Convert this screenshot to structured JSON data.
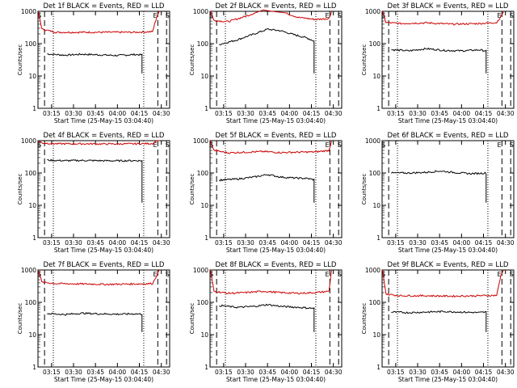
{
  "chart_data": [
    {
      "type": "line",
      "title": "Det 1f BLACK = Events, RED = LLD",
      "xlabel": "Start Time (25-May-15 03:04:40)",
      "ylabel": "Counts/sec",
      "yscale": "log",
      "ylim": [
        1,
        1000
      ],
      "yticks": [
        "1000",
        "100",
        "10",
        "1"
      ],
      "xlim": [
        3.095,
        4.595
      ],
      "xticks": [
        "03:15",
        "03:30",
        "03:45",
        "04:00",
        "04:15",
        "04:30"
      ],
      "markers": [
        "S",
        "E",
        "S"
      ],
      "series": [
        {
          "color": "#000000",
          "values": [
            [
              3.2,
              48
            ],
            [
              3.4,
              44
            ],
            [
              3.6,
              47
            ],
            [
              3.8,
              45
            ],
            [
              4.0,
              43
            ],
            [
              4.2,
              46
            ],
            [
              4.28,
              45
            ]
          ]
        },
        {
          "color": "#cc0000",
          "values": [
            [
              3.1,
              1000
            ],
            [
              3.14,
              280
            ],
            [
              3.3,
              225
            ],
            [
              3.6,
              225
            ],
            [
              3.9,
              225
            ],
            [
              4.2,
              225
            ],
            [
              4.4,
              235
            ],
            [
              4.45,
              700
            ],
            [
              4.48,
              1000
            ]
          ]
        }
      ]
    },
    {
      "type": "line",
      "title": "Det 2f BLACK = Events, RED = LLD",
      "xlabel": "Start Time (25-May-15 03:04:40)",
      "ylabel": "Counts/sec",
      "yscale": "log",
      "ylim": [
        1,
        1000
      ],
      "yticks": [
        "1000",
        "100",
        "10",
        "1"
      ],
      "xlim": [
        3.095,
        4.595
      ],
      "xticks": [
        "03:15",
        "03:30",
        "03:45",
        "04:00",
        "04:15",
        "04:30"
      ],
      "markers": [
        "S",
        "E",
        "S"
      ],
      "series": [
        {
          "color": "#000000",
          "values": [
            [
              3.2,
              95
            ],
            [
              3.4,
              130
            ],
            [
              3.6,
              200
            ],
            [
              3.75,
              280
            ],
            [
              3.9,
              250
            ],
            [
              4.05,
              190
            ],
            [
              4.2,
              150
            ],
            [
              4.28,
              120
            ]
          ]
        },
        {
          "color": "#cc0000",
          "values": [
            [
              3.1,
              1000
            ],
            [
              3.14,
              520
            ],
            [
              3.3,
              480
            ],
            [
              3.5,
              700
            ],
            [
              3.7,
              1100
            ],
            [
              3.8,
              1000
            ],
            [
              3.95,
              900
            ],
            [
              4.1,
              650
            ],
            [
              4.3,
              560
            ],
            [
              4.45,
              600
            ],
            [
              4.48,
              1000
            ]
          ]
        }
      ]
    },
    {
      "type": "line",
      "title": "Det 3f BLACK = Events, RED = LLD",
      "xlabel": "Start Time (25-May-15 03:04:40)",
      "ylabel": "Counts/sec",
      "yscale": "log",
      "ylim": [
        1,
        1000
      ],
      "yticks": [
        "1000",
        "100",
        "10",
        "1"
      ],
      "xlim": [
        3.095,
        4.595
      ],
      "xticks": [
        "03:15",
        "03:30",
        "03:45",
        "04:00",
        "04:15",
        "04:30"
      ],
      "markers": [
        "S",
        "E",
        "S"
      ],
      "series": [
        {
          "color": "#000000",
          "values": [
            [
              3.2,
              65
            ],
            [
              3.4,
              60
            ],
            [
              3.6,
              70
            ],
            [
              3.8,
              62
            ],
            [
              4.0,
              60
            ],
            [
              4.2,
              64
            ],
            [
              4.28,
              60
            ]
          ]
        },
        {
          "color": "#cc0000",
          "values": [
            [
              3.1,
              1000
            ],
            [
              3.14,
              450
            ],
            [
              3.3,
              420
            ],
            [
              3.6,
              440
            ],
            [
              3.9,
              400
            ],
            [
              4.2,
              420
            ],
            [
              4.4,
              450
            ],
            [
              4.45,
              700
            ],
            [
              4.48,
              1000
            ]
          ]
        }
      ]
    },
    {
      "type": "line",
      "title": "Det 4f BLACK = Events, RED = LLD",
      "xlabel": "Start Time (25-May-15 03:04:40)",
      "ylabel": "Counts/sec",
      "yscale": "log",
      "ylim": [
        1,
        1000
      ],
      "yticks": [
        "1000",
        "100",
        "10",
        "1"
      ],
      "xlim": [
        3.095,
        4.595
      ],
      "xticks": [
        "03:15",
        "03:30",
        "03:45",
        "04:00",
        "04:15",
        "04:30"
      ],
      "markers": [
        "S",
        "E",
        "S"
      ],
      "series": [
        {
          "color": "#000000",
          "values": [
            [
              3.2,
              250
            ],
            [
              3.4,
              240
            ],
            [
              3.6,
              245
            ],
            [
              3.8,
              240
            ],
            [
              4.0,
              238
            ],
            [
              4.2,
              242
            ],
            [
              4.28,
              240
            ]
          ]
        },
        {
          "color": "#cc0000",
          "values": [
            [
              3.1,
              1000
            ],
            [
              3.14,
              850
            ],
            [
              3.3,
              800
            ],
            [
              3.6,
              800
            ],
            [
              3.9,
              790
            ],
            [
              4.2,
              800
            ],
            [
              4.4,
              820
            ],
            [
              4.45,
              1000
            ],
            [
              4.48,
              1000
            ]
          ]
        }
      ]
    },
    {
      "type": "line",
      "title": "Det 5f BLACK = Events, RED = LLD",
      "xlabel": "Start Time (25-May-15 03:04:40)",
      "ylabel": "Counts/sec",
      "yscale": "log",
      "ylim": [
        1,
        1000
      ],
      "yticks": [
        "1000",
        "100",
        "10",
        "1"
      ],
      "xlim": [
        3.095,
        4.595
      ],
      "xticks": [
        "03:15",
        "03:30",
        "03:45",
        "04:00",
        "04:15",
        "04:30"
      ],
      "markers": [
        "S",
        "E",
        "S"
      ],
      "series": [
        {
          "color": "#000000",
          "values": [
            [
              3.2,
              60
            ],
            [
              3.4,
              65
            ],
            [
              3.6,
              75
            ],
            [
              3.75,
              90
            ],
            [
              3.9,
              75
            ],
            [
              4.05,
              70
            ],
            [
              4.2,
              68
            ],
            [
              4.28,
              62
            ]
          ]
        },
        {
          "color": "#cc0000",
          "values": [
            [
              3.1,
              1000
            ],
            [
              3.14,
              500
            ],
            [
              3.3,
              420
            ],
            [
              3.5,
              440
            ],
            [
              3.7,
              460
            ],
            [
              3.9,
              430
            ],
            [
              4.1,
              440
            ],
            [
              4.3,
              450
            ],
            [
              4.45,
              500
            ],
            [
              4.48,
              1000
            ]
          ]
        }
      ]
    },
    {
      "type": "line",
      "title": "Det 6f BLACK = Events, RED = LLD",
      "xlabel": "Start Time (25-May-15 03:04:40)",
      "ylabel": "Counts/sec",
      "yscale": "log",
      "ylim": [
        1,
        1000
      ],
      "yticks": [
        "1000",
        "100",
        "10",
        "1"
      ],
      "xlim": [
        3.095,
        4.595
      ],
      "xticks": [
        "03:15",
        "03:30",
        "03:45",
        "04:00",
        "04:15",
        "04:30"
      ],
      "markers": [
        "S",
        "E",
        "S"
      ],
      "series": [
        {
          "color": "#000000",
          "values": [
            [
              3.2,
              100
            ],
            [
              3.4,
              100
            ],
            [
              3.6,
              105
            ],
            [
              3.75,
              115
            ],
            [
              3.9,
              105
            ],
            [
              4.1,
              95
            ],
            [
              4.28,
              100
            ]
          ]
        }
      ]
    },
    {
      "type": "line",
      "title": "Det 7f BLACK = Events, RED = LLD",
      "xlabel": "Start Time (25-May-15 03:04:40)",
      "ylabel": "Counts/sec",
      "yscale": "log",
      "ylim": [
        1,
        1000
      ],
      "yticks": [
        "1000",
        "100",
        "10",
        "1"
      ],
      "xlim": [
        3.095,
        4.595
      ],
      "xticks": [
        "03:15",
        "03:30",
        "03:45",
        "04:00",
        "04:15",
        "04:30"
      ],
      "markers": [
        "S",
        "E",
        "S"
      ],
      "series": [
        {
          "color": "#000000",
          "values": [
            [
              3.2,
              45
            ],
            [
              3.4,
              42
            ],
            [
              3.6,
              46
            ],
            [
              3.8,
              44
            ],
            [
              4.0,
              43
            ],
            [
              4.2,
              44
            ],
            [
              4.28,
              43
            ]
          ]
        },
        {
          "color": "#cc0000",
          "values": [
            [
              3.1,
              1000
            ],
            [
              3.14,
              420
            ],
            [
              3.3,
              380
            ],
            [
              3.6,
              370
            ],
            [
              3.9,
              360
            ],
            [
              4.2,
              370
            ],
            [
              4.4,
              380
            ],
            [
              4.45,
              700
            ],
            [
              4.48,
              1000
            ]
          ]
        }
      ]
    },
    {
      "type": "line",
      "title": "Det 8f BLACK = Events, RED = LLD",
      "xlabel": "Start Time (25-May-15 03:04:40)",
      "ylabel": "Counts/sec",
      "yscale": "log",
      "ylim": [
        1,
        1000
      ],
      "yticks": [
        "1000",
        "100",
        "10",
        "1"
      ],
      "xlim": [
        3.095,
        4.595
      ],
      "xticks": [
        "03:15",
        "03:30",
        "03:45",
        "04:00",
        "04:15",
        "04:30"
      ],
      "markers": [
        "S",
        "E",
        "S"
      ],
      "series": [
        {
          "color": "#000000",
          "values": [
            [
              3.2,
              80
            ],
            [
              3.4,
              70
            ],
            [
              3.6,
              75
            ],
            [
              3.75,
              85
            ],
            [
              3.9,
              75
            ],
            [
              4.1,
              70
            ],
            [
              4.28,
              65
            ]
          ]
        },
        {
          "color": "#cc0000",
          "values": [
            [
              3.1,
              1000
            ],
            [
              3.14,
              220
            ],
            [
              3.3,
              190
            ],
            [
              3.5,
              200
            ],
            [
              3.7,
              220
            ],
            [
              3.9,
              200
            ],
            [
              4.1,
              190
            ],
            [
              4.3,
              200
            ],
            [
              4.45,
              220
            ],
            [
              4.48,
              1000
            ]
          ]
        }
      ]
    },
    {
      "type": "line",
      "title": "Det 9f BLACK = Events, RED = LLD",
      "xlabel": "Start Time (25-May-15 03:04:40)",
      "ylabel": "Counts/sec",
      "yscale": "log",
      "ylim": [
        1,
        1000
      ],
      "yticks": [
        "1000",
        "100",
        "10",
        "1"
      ],
      "xlim": [
        3.095,
        4.595
      ],
      "xticks": [
        "03:15",
        "03:30",
        "03:45",
        "04:00",
        "04:15",
        "04:30"
      ],
      "markers": [
        "S",
        "E",
        "S"
      ],
      "series": [
        {
          "color": "#000000",
          "values": [
            [
              3.2,
              50
            ],
            [
              3.4,
              48
            ],
            [
              3.6,
              50
            ],
            [
              3.8,
              52
            ],
            [
              4.0,
              50
            ],
            [
              4.2,
              48
            ],
            [
              4.28,
              50
            ]
          ]
        },
        {
          "color": "#cc0000",
          "values": [
            [
              3.1,
              1000
            ],
            [
              3.14,
              180
            ],
            [
              3.3,
              160
            ],
            [
              3.6,
              160
            ],
            [
              3.9,
              155
            ],
            [
              4.2,
              160
            ],
            [
              4.4,
              165
            ],
            [
              4.45,
              700
            ],
            [
              4.48,
              1000
            ]
          ]
        }
      ]
    }
  ]
}
